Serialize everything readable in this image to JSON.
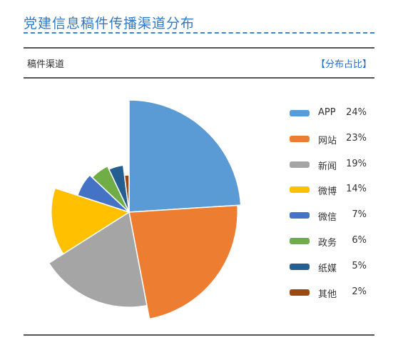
{
  "header": {
    "title": "党建信息稿件传播渠道分布"
  },
  "panel": {
    "label": "稿件渠道",
    "link": "【分布占比】"
  },
  "chart_data": {
    "type": "pie",
    "variant": "variable-radius (rose)",
    "start_angle_deg": 0,
    "direction": "clockwise from 12 o'clock",
    "slices": [
      {
        "label": "APP",
        "value": 24,
        "display": "24%",
        "color": "#5b9bd5"
      },
      {
        "label": "网站",
        "value": 23,
        "display": "23%",
        "color": "#ed7d31"
      },
      {
        "label": "新闻",
        "value": 19,
        "display": "19%",
        "color": "#a5a5a5"
      },
      {
        "label": "微博",
        "value": 14,
        "display": "14%",
        "color": "#ffc000"
      },
      {
        "label": "微信",
        "value": 7,
        "display": "7%",
        "color": "#4472c4"
      },
      {
        "label": "政务",
        "value": 6,
        "display": "6%",
        "color": "#70ad47"
      },
      {
        "label": "纸媒",
        "value": 5,
        "display": "5%",
        "color": "#255e91"
      },
      {
        "label": "其他",
        "value": 2,
        "display": "2%",
        "color": "#9e480e"
      }
    ],
    "legend_position": "right"
  }
}
